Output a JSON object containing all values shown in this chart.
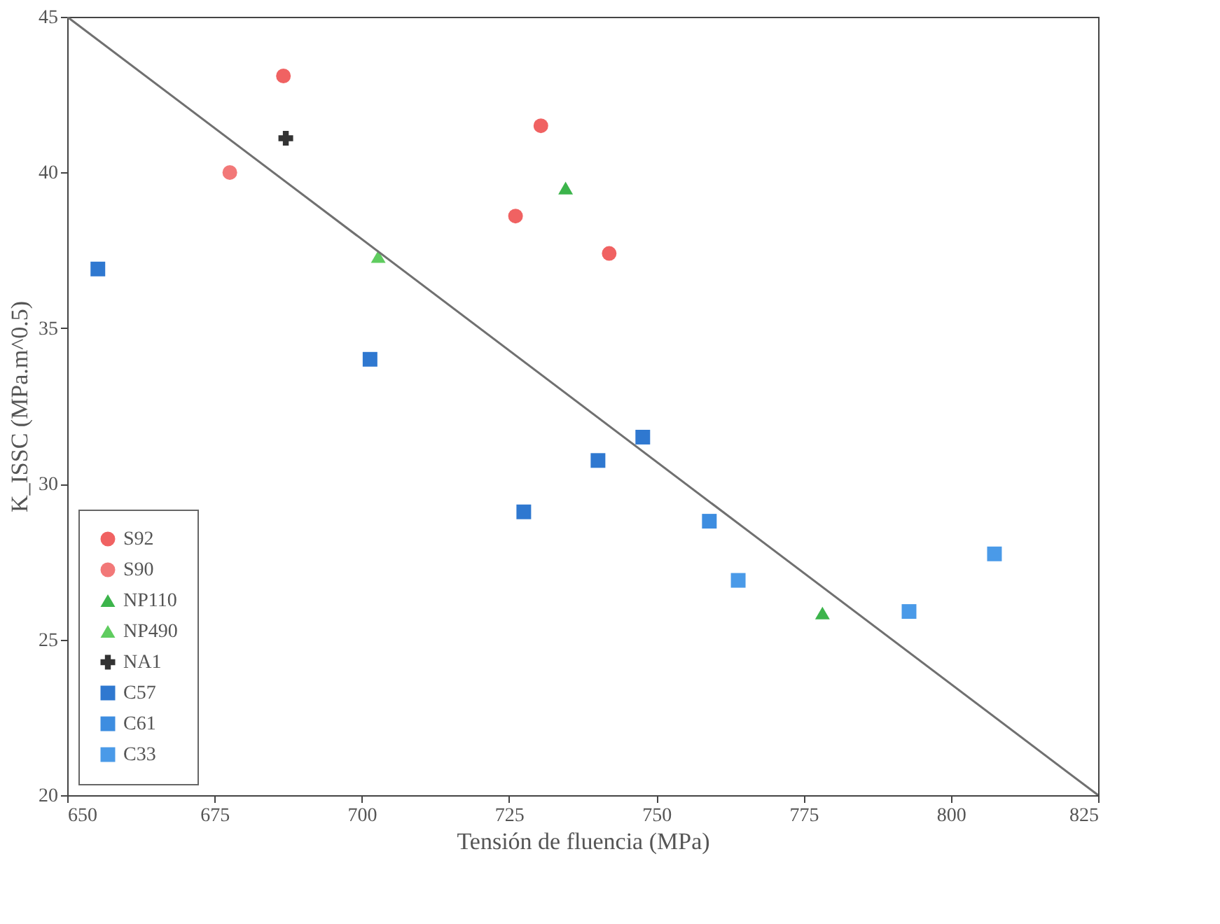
{
  "chart_data": {
    "type": "scatter",
    "xlabel": "Tensión de fluencia (MPa)",
    "ylabel": "K_ISSC (MPa.m^0.5)",
    "xlim": [
      650,
      825
    ],
    "xticks": [
      650,
      675,
      700,
      725,
      750,
      775,
      800,
      825
    ],
    "ylim": [
      20,
      45
    ],
    "yticks": [
      20,
      25,
      30,
      35,
      40,
      45
    ],
    "grid": false,
    "legend": "bottom left",
    "series": [
      {
        "name": "S92",
        "color": "#f06262",
        "marker": "circle",
        "x": [
          686.7,
          730.4,
          726.1,
          742.0
        ],
        "values": [
          43.1,
          41.5,
          38.6,
          37.4
        ]
      },
      {
        "name": "S90",
        "color": "#f27878",
        "marker": "circle",
        "x": [
          677.6
        ],
        "values": [
          40.0
        ]
      },
      {
        "name": "NP110",
        "color": "#3cb44b",
        "marker": "triangle",
        "x": [
          734.6,
          778.2
        ],
        "values": [
          39.5,
          25.85
        ]
      },
      {
        "name": "NP490",
        "color": "#5fcc5f",
        "marker": "triangle",
        "x": [
          702.8
        ],
        "values": [
          37.3
        ]
      },
      {
        "name": "NA1",
        "color": "#333333",
        "marker": "cross",
        "x": [
          687.1
        ],
        "values": [
          41.1
        ]
      },
      {
        "name": "C57",
        "color": "#2f78d0",
        "marker": "square",
        "x": [
          655.2,
          701.4,
          727.5,
          740.1,
          747.7
        ],
        "values": [
          36.9,
          34.0,
          29.1,
          30.75,
          31.5
        ]
      },
      {
        "name": "C61",
        "color": "#3d8de0",
        "marker": "square",
        "x": [
          759.0
        ],
        "values": [
          28.8
        ]
      },
      {
        "name": "C33",
        "color": "#4a9ae8",
        "marker": "square",
        "x": [
          763.9,
          792.9,
          807.4
        ],
        "values": [
          26.9,
          25.9,
          27.75
        ]
      },
      {
        "type": "line",
        "color": "#707070",
        "x": [
          650,
          825
        ],
        "values": [
          45,
          20
        ]
      }
    ]
  }
}
